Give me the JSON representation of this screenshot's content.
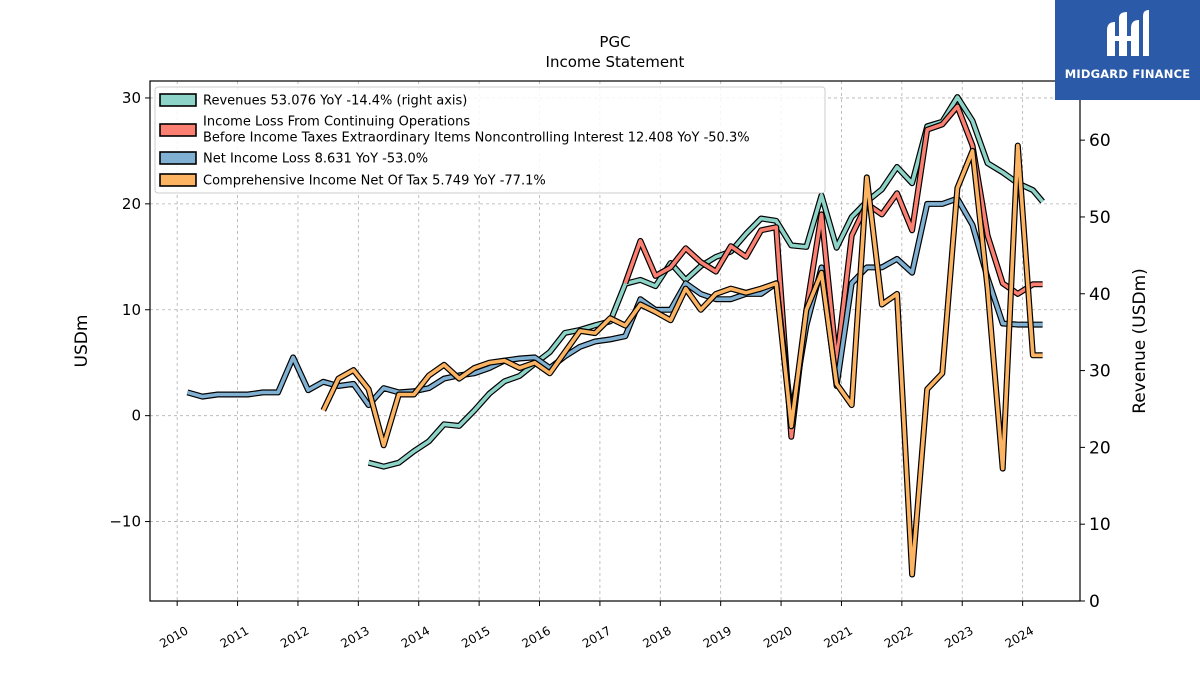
{
  "chart_data": {
    "type": "line",
    "title": "PGC",
    "subtitle": "Income Statement",
    "ylabel": "USDm",
    "ylabel_right": "Revenue (USDm)",
    "ylim": [
      -17.5,
      31.6
    ],
    "ylim_right": [
      0,
      67.7
    ],
    "xlim": [
      2009.55,
      2024.95
    ],
    "yticks": [
      -10,
      0,
      10,
      20,
      30
    ],
    "yticks_right": [
      0,
      10,
      20,
      30,
      40,
      50,
      60
    ],
    "xticks": [
      2010,
      2011,
      2012,
      2013,
      2014,
      2015,
      2016,
      2017,
      2018,
      2019,
      2020,
      2021,
      2022,
      2023,
      2024
    ],
    "grid": true,
    "legend_position": "top-left",
    "series": [
      {
        "name": "Revenues",
        "legend": "Revenues  53.076 YoY -14.4% (right axis)",
        "axis": "right",
        "color": "#8dd3c7",
        "x": [
          2013.17,
          2013.42,
          2013.67,
          2013.92,
          2014.17,
          2014.42,
          2014.67,
          2014.92,
          2015.17,
          2015.42,
          2015.67,
          2015.92,
          2016.17,
          2016.42,
          2016.67,
          2016.92,
          2017.17,
          2017.42,
          2017.67,
          2017.92,
          2018.17,
          2018.42,
          2018.67,
          2018.92,
          2019.17,
          2019.42,
          2019.67,
          2019.92,
          2020.17,
          2020.42,
          2020.67,
          2020.92,
          2021.17,
          2021.42,
          2021.67,
          2021.92,
          2022.17,
          2022.42,
          2022.67,
          2022.92,
          2023.17,
          2023.42,
          2023.67,
          2023.92,
          2024.17,
          2024.33
        ],
        "values": [
          18.0,
          17.5,
          18.0,
          19.5,
          20.8,
          23.0,
          22.8,
          24.8,
          27.0,
          28.6,
          29.3,
          30.9,
          32.4,
          34.9,
          35.3,
          35.9,
          36.4,
          41.3,
          41.8,
          41.0,
          44.0,
          41.8,
          43.6,
          44.8,
          45.5,
          47.8,
          49.8,
          49.5,
          46.3,
          46.1,
          52.8,
          46.0,
          50.0,
          52.0,
          53.6,
          56.5,
          54.4,
          61.8,
          62.4,
          65.6,
          62.5,
          57.0,
          55.8,
          54.4,
          53.5,
          52.0
        ]
      },
      {
        "name": "Income Loss From Continuing Operations Before Income Taxes Extraordinary Items Noncontrolling Interest",
        "legend_lines": [
          "Income Loss From Continuing Operations",
          "Before Income Taxes Extraordinary Items Noncontrolling Interest  12.408 YoY -50.3%"
        ],
        "axis": "left",
        "color": "#fb8072",
        "x": [
          2017.42,
          2017.67,
          2017.92,
          2018.17,
          2018.42,
          2018.67,
          2018.92,
          2019.17,
          2019.42,
          2019.67,
          2019.92,
          2020.17,
          2020.42,
          2020.67,
          2020.92,
          2021.17,
          2021.42,
          2021.67,
          2021.92,
          2022.17,
          2022.42,
          2022.67,
          2022.92,
          2023.17,
          2023.42,
          2023.67,
          2023.92,
          2024.17,
          2024.33
        ],
        "values": [
          12.5,
          16.5,
          13.2,
          14.0,
          15.8,
          14.5,
          13.6,
          16.0,
          15.0,
          17.5,
          17.8,
          -2.0,
          10.0,
          19.0,
          5.0,
          17.0,
          20.0,
          19.0,
          21.0,
          17.5,
          27.0,
          27.5,
          29.2,
          25.5,
          17.0,
          12.5,
          11.5,
          12.4,
          12.4
        ]
      },
      {
        "name": "Net Income Loss",
        "legend": "Net Income Loss  8.631 YoY -53.0%",
        "axis": "left",
        "color": "#80b1d3",
        "x": [
          2010.17,
          2010.42,
          2010.67,
          2010.92,
          2011.17,
          2011.42,
          2011.67,
          2011.92,
          2012.17,
          2012.42,
          2012.67,
          2012.92,
          2013.17,
          2013.42,
          2013.67,
          2013.92,
          2014.17,
          2014.42,
          2014.67,
          2014.92,
          2015.17,
          2015.42,
          2015.67,
          2015.92,
          2016.17,
          2016.42,
          2016.67,
          2016.92,
          2017.17,
          2017.42,
          2017.67,
          2017.92,
          2018.17,
          2018.42,
          2018.67,
          2018.92,
          2019.17,
          2019.42,
          2019.67,
          2019.92,
          2020.17,
          2020.42,
          2020.67,
          2020.92,
          2021.17,
          2021.42,
          2021.67,
          2021.92,
          2022.17,
          2022.42,
          2022.67,
          2022.92,
          2023.17,
          2023.42,
          2023.67,
          2023.92,
          2024.17,
          2024.33
        ],
        "values": [
          2.2,
          1.8,
          2.0,
          2.0,
          2.0,
          2.2,
          2.2,
          5.5,
          2.4,
          3.2,
          2.8,
          3.0,
          1.0,
          2.6,
          2.2,
          2.3,
          2.6,
          3.5,
          3.8,
          4.0,
          4.5,
          5.2,
          5.4,
          5.5,
          4.5,
          5.6,
          6.5,
          7.0,
          7.2,
          7.5,
          11.0,
          10.0,
          10.0,
          12.5,
          11.5,
          11.0,
          11.0,
          11.5,
          11.5,
          12.5,
          0.0,
          8.5,
          14.0,
          2.8,
          12.5,
          14.0,
          14.0,
          14.8,
          13.5,
          20.0,
          20.0,
          20.5,
          18.0,
          13.0,
          8.7,
          8.6,
          8.6,
          8.6
        ]
      },
      {
        "name": "Comprehensive Income Net Of Tax",
        "legend": "Comprehensive Income Net Of Tax  5.749 YoY -77.1%",
        "axis": "left",
        "color": "#fdb462",
        "x": [
          2012.42,
          2012.67,
          2012.92,
          2013.17,
          2013.42,
          2013.67,
          2013.92,
          2014.17,
          2014.42,
          2014.67,
          2014.92,
          2015.17,
          2015.42,
          2015.67,
          2015.92,
          2016.17,
          2016.42,
          2016.67,
          2016.92,
          2017.17,
          2017.42,
          2017.67,
          2017.92,
          2018.17,
          2018.42,
          2018.67,
          2018.92,
          2019.17,
          2019.42,
          2019.67,
          2019.92,
          2020.17,
          2020.42,
          2020.67,
          2020.92,
          2021.17,
          2021.42,
          2021.67,
          2021.92,
          2022.17,
          2022.42,
          2022.67,
          2022.92,
          2023.17,
          2023.42,
          2023.67,
          2023.92,
          2024.17,
          2024.33
        ],
        "values": [
          0.5,
          3.5,
          4.3,
          2.5,
          -2.8,
          2.0,
          2.0,
          3.8,
          4.8,
          3.5,
          4.5,
          5.0,
          5.2,
          4.5,
          5.0,
          4.0,
          6.0,
          8.0,
          7.8,
          9.2,
          8.5,
          10.5,
          9.8,
          9.0,
          12.0,
          10.0,
          11.5,
          12.0,
          11.6,
          12.0,
          12.5,
          -1.0,
          10.0,
          13.5,
          3.0,
          1.0,
          22.5,
          10.5,
          11.5,
          -15.0,
          2.5,
          4.0,
          21.5,
          25.0,
          12.0,
          -5.0,
          25.5,
          5.7,
          5.7
        ]
      }
    ]
  },
  "logo": {
    "text": "MIDGARD FINANCE",
    "bg_color": "#2b5ba8"
  }
}
